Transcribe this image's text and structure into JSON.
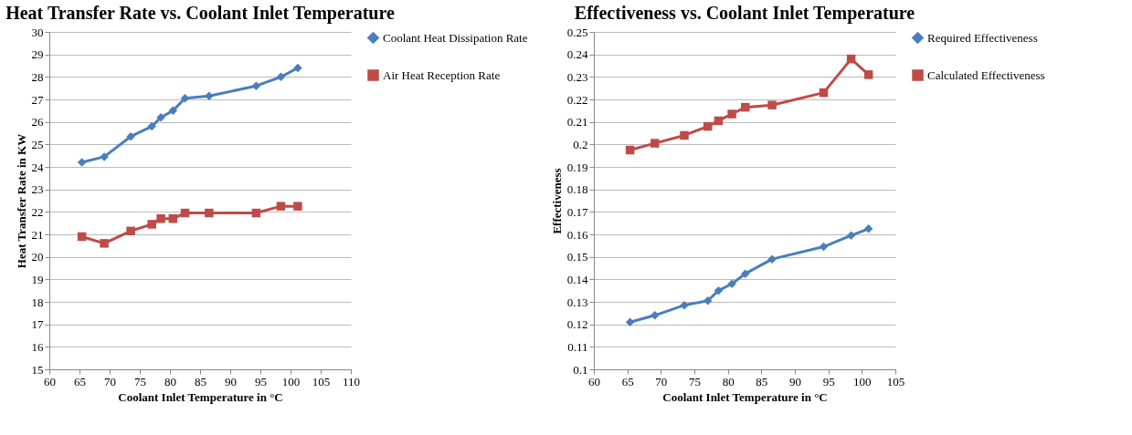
{
  "chart_data": [
    {
      "type": "line",
      "title": "Heat Transfer Rate vs. Coolant Inlet Temperature",
      "xlabel": "Coolant Inlet Temperature in °C",
      "ylabel": "Heat Transfer Rate in KW",
      "xlim": [
        60,
        110
      ],
      "xticks": [
        60,
        65,
        70,
        75,
        80,
        85,
        90,
        95,
        100,
        105,
        110
      ],
      "ylim": [
        15,
        30
      ],
      "yticks": [
        15,
        16,
        17,
        18,
        19,
        20,
        21,
        22,
        23,
        24,
        25,
        26,
        27,
        28,
        29,
        30
      ],
      "grid": "y",
      "legend": "right",
      "x": [
        65.4,
        69.1,
        73.5,
        77,
        78.5,
        80.5,
        82.5,
        86.5,
        94.3,
        98.4,
        101.2
      ],
      "series": [
        {
          "name": "Coolant Heat Dissipation Rate",
          "color": "#4a7ebb",
          "marker": "diamond",
          "values": [
            24.2,
            24.45,
            25.35,
            25.8,
            26.2,
            26.5,
            27.05,
            27.15,
            27.6,
            28.0,
            28.4
          ]
        },
        {
          "name": "Air Heat Reception Rate",
          "color": "#be4b48",
          "marker": "square",
          "values": [
            20.9,
            20.6,
            21.15,
            21.45,
            21.7,
            21.7,
            21.95,
            21.95,
            21.95,
            22.25,
            22.25
          ]
        }
      ]
    },
    {
      "type": "line",
      "title": "Effectiveness vs. Coolant Inlet Temperature",
      "xlabel": "Coolant Inlet Temperature in °C",
      "ylabel": "Effectiveness",
      "xlim": [
        60,
        105
      ],
      "xticks": [
        60,
        65,
        70,
        75,
        80,
        85,
        90,
        95,
        100,
        105
      ],
      "ylim": [
        0.1,
        0.25
      ],
      "yticks": [
        0.1,
        0.11,
        0.12,
        0.13,
        0.14,
        0.15,
        0.16,
        0.17,
        0.18,
        0.19,
        0.2,
        0.21,
        0.22,
        0.23,
        0.24,
        0.25
      ],
      "grid": "y",
      "legend": "right",
      "x": [
        65.4,
        69.1,
        73.5,
        77,
        78.6,
        80.6,
        82.6,
        86.6,
        94.3,
        98.4,
        101
      ],
      "series": [
        {
          "name": "Required Effectiveness",
          "color": "#4a7ebb",
          "marker": "diamond",
          "values": [
            0.121,
            0.124,
            0.1285,
            0.1305,
            0.135,
            0.138,
            0.1425,
            0.149,
            0.1545,
            0.1595,
            0.1625
          ]
        },
        {
          "name": "Calculated Effectiveness",
          "color": "#be4b48",
          "marker": "square",
          "values": [
            0.1975,
            0.2005,
            0.204,
            0.208,
            0.2105,
            0.2135,
            0.2165,
            0.2175,
            0.223,
            0.238,
            0.231
          ]
        }
      ]
    }
  ]
}
